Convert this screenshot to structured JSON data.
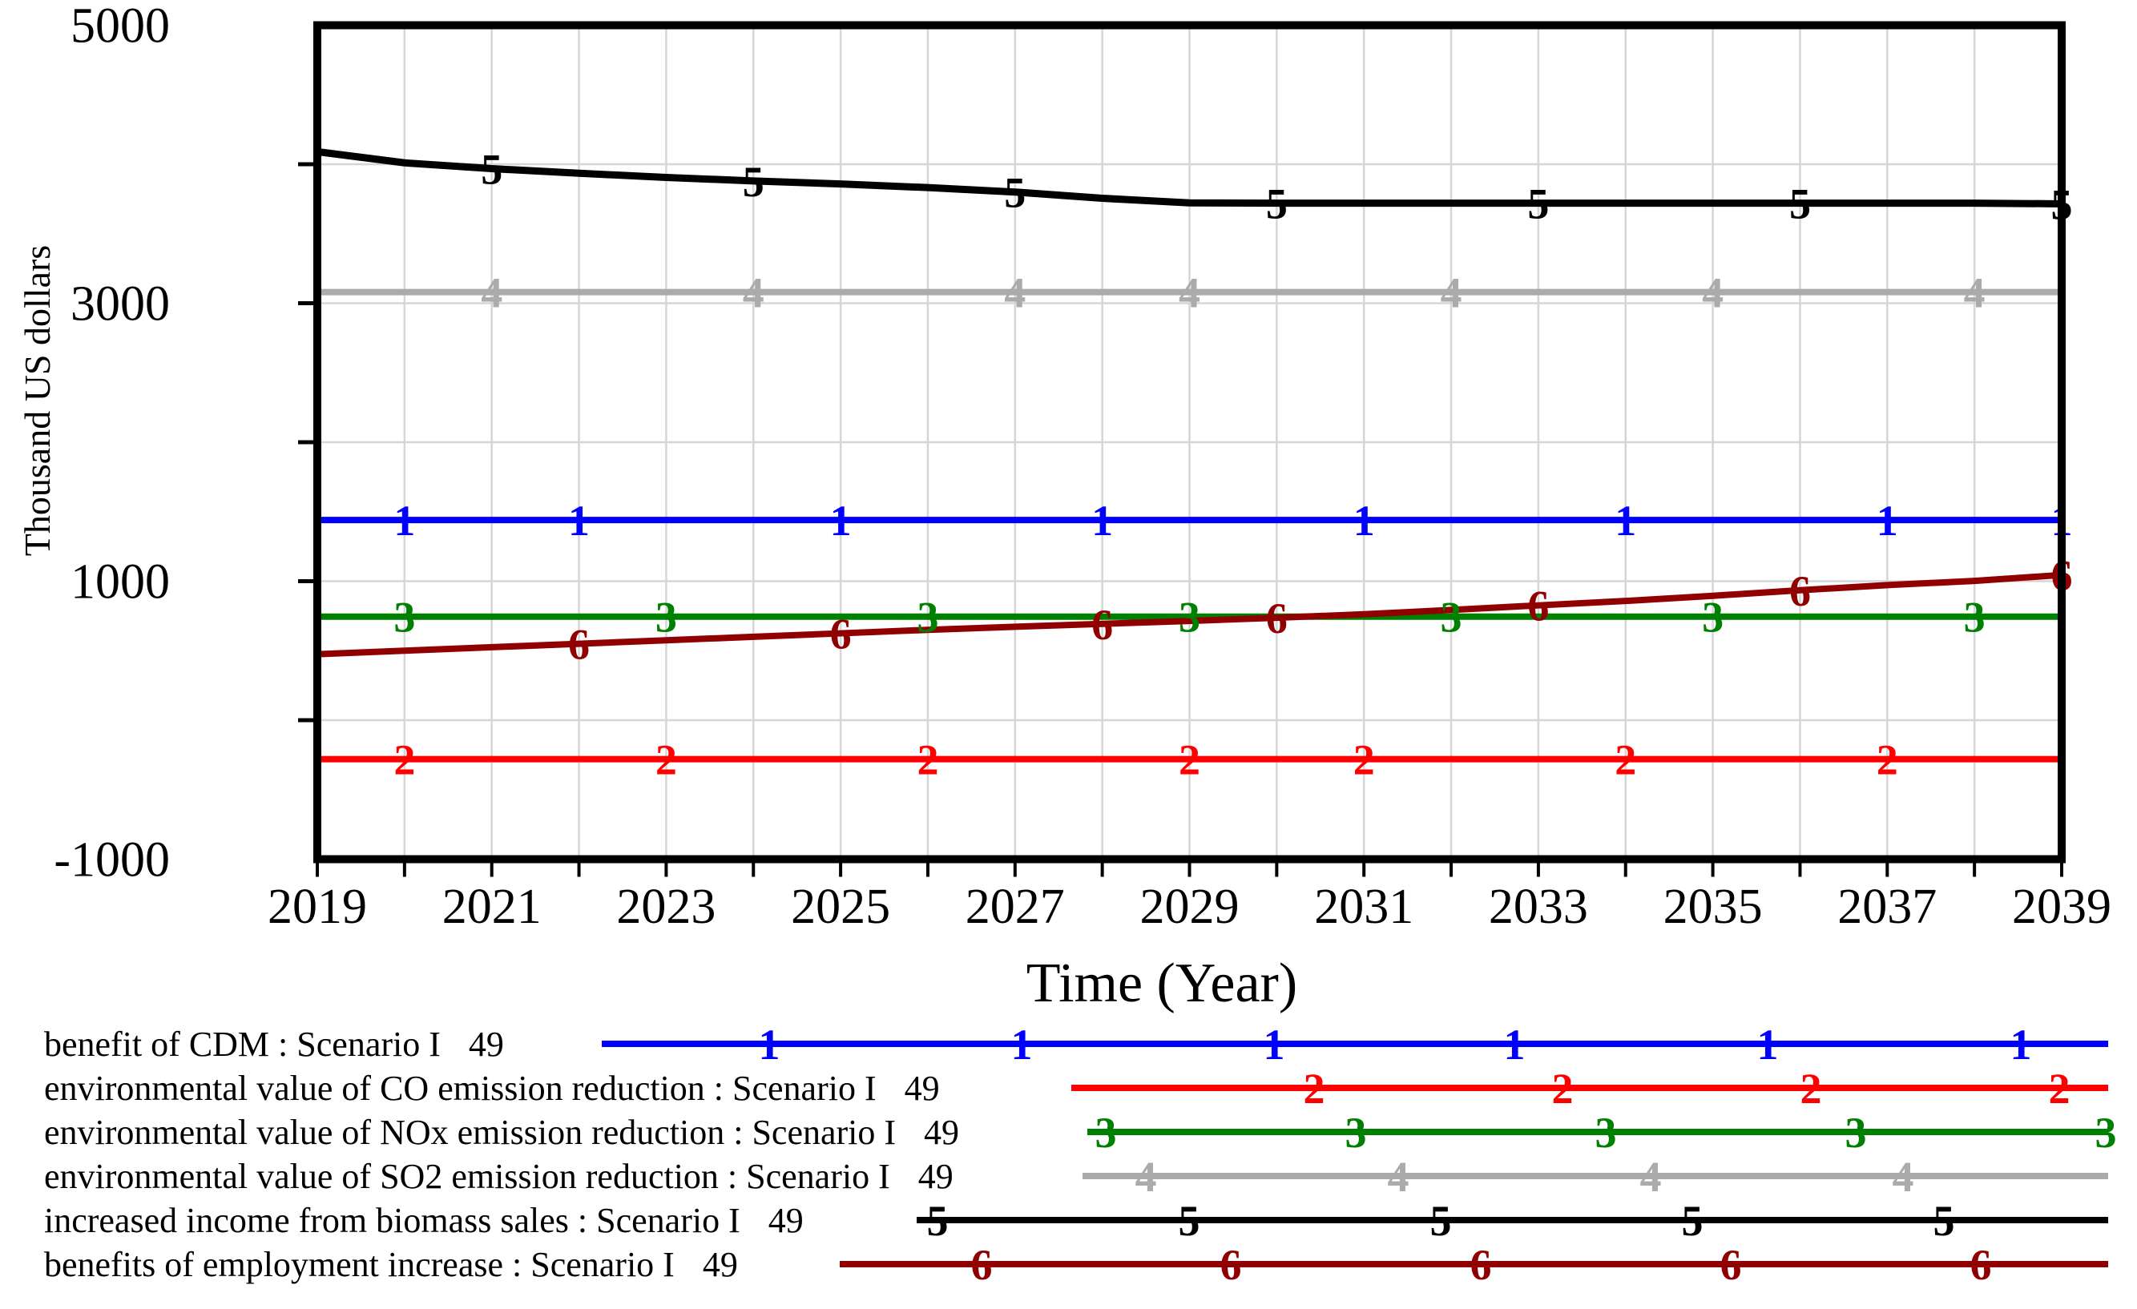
{
  "y_axis": {
    "label": "Thousand US dollars",
    "ticks": [
      5000,
      3000,
      1000,
      -1000
    ],
    "min": -1000,
    "max": 5000,
    "gridline_step": 1000
  },
  "x_axis": {
    "label": "Time (Year)",
    "ticks": [
      2019,
      2021,
      2023,
      2025,
      2027,
      2029,
      2031,
      2033,
      2035,
      2037,
      2039
    ],
    "min": 2019,
    "max": 2039,
    "gridline_step": 1
  },
  "colors": {
    "axis": "#000000",
    "gridline": "#d6d6d6"
  },
  "chart_data": {
    "type": "line",
    "title": "",
    "xlabel": "Time (Year)",
    "ylabel": "Thousand US dollars",
    "ylim": [
      -1000,
      5000
    ],
    "xlim": [
      2019,
      2039
    ],
    "grid": true,
    "legend_position": "bottom",
    "x": [
      2019,
      2020,
      2021,
      2022,
      2023,
      2024,
      2025,
      2026,
      2027,
      2028,
      2029,
      2030,
      2031,
      2032,
      2033,
      2034,
      2035,
      2036,
      2037,
      2038,
      2039
    ],
    "series": [
      {
        "num": "1",
        "label": "benefit of CDM : Scenario I",
        "run": "49",
        "color": "#0000ff",
        "values": [
          1440,
          1440,
          1440,
          1440,
          1440,
          1440,
          1440,
          1440,
          1440,
          1440,
          1440,
          1440,
          1440,
          1440,
          1440,
          1440,
          1440,
          1440,
          1440,
          1440,
          1440
        ],
        "marker_years": [
          2020,
          2022,
          2025,
          2028,
          2031,
          2034,
          2037,
          2039
        ],
        "legend": {
          "line_start": 751,
          "line_end": 2631,
          "markers": [
            960,
            1275,
            1590,
            1890,
            2206,
            2522
          ]
        }
      },
      {
        "num": "2",
        "label": "environmental value of CO emission reduction : Scenario I",
        "run": "49",
        "color": "#ff0000",
        "values": [
          -280,
          -280,
          -280,
          -280,
          -280,
          -280,
          -280,
          -280,
          -280,
          -280,
          -280,
          -280,
          -280,
          -280,
          -280,
          -280,
          -280,
          -280,
          -280,
          -280,
          -280
        ],
        "marker_years": [
          2020,
          2023,
          2026,
          2029,
          2031,
          2034,
          2037
        ],
        "legend": {
          "line_start": 1337,
          "line_end": 2631,
          "markers": [
            1640,
            1950,
            2260,
            2570
          ]
        }
      },
      {
        "num": "3",
        "label": "environmental value of NOx emission reduction : Scenario I",
        "run": "49",
        "color": "#008000",
        "values": [
          745,
          745,
          745,
          745,
          745,
          745,
          745,
          745,
          745,
          745,
          745,
          745,
          745,
          745,
          745,
          745,
          745,
          745,
          745,
          745,
          745
        ],
        "marker_years": [
          2020,
          2023,
          2026,
          2029,
          2032,
          2035,
          2038
        ],
        "legend": {
          "line_start": 1357,
          "line_end": 2631,
          "markers": [
            1380,
            1692,
            2004,
            2316,
            2628
          ]
        }
      },
      {
        "num": "4",
        "label": "environmental value of SO2 emission reduction : Scenario I",
        "run": "49",
        "color": "#ababab",
        "values": [
          3080,
          3080,
          3080,
          3080,
          3080,
          3080,
          3080,
          3080,
          3080,
          3080,
          3080,
          3080,
          3080,
          3080,
          3080,
          3080,
          3080,
          3080,
          3080,
          3080,
          3080
        ],
        "marker_years": [
          2021,
          2024,
          2027,
          2029,
          2032,
          2035,
          2038
        ],
        "legend": {
          "line_start": 1351,
          "line_end": 2631,
          "markers": [
            1430,
            1745,
            2060,
            2375
          ]
        }
      },
      {
        "num": "5",
        "label": "increased income from biomass sales : Scenario I",
        "run": "49",
        "color": "#000000",
        "values": [
          4090,
          4010,
          3968,
          3935,
          3905,
          3880,
          3858,
          3832,
          3800,
          3755,
          3722,
          3720,
          3720,
          3720,
          3720,
          3720,
          3720,
          3720,
          3720,
          3720,
          3715
        ],
        "marker_years": [
          2021,
          2024,
          2027,
          2030,
          2033,
          2036,
          2039
        ],
        "legend": {
          "line_start": 1144,
          "line_end": 2631,
          "markers": [
            1170,
            1484,
            1798,
            2112,
            2426
          ]
        }
      },
      {
        "num": "6",
        "label": "benefits of employment increase : Scenario I",
        "run": "49",
        "color": "#900000",
        "values": [
          475,
          500,
          525,
          550,
          575,
          600,
          625,
          650,
          672,
          693,
          714,
          737,
          762,
          793,
          826,
          858,
          895,
          935,
          972,
          1002,
          1045
        ],
        "marker_years": [
          2022,
          2025,
          2028,
          2030,
          2033,
          2036,
          2039
        ],
        "legend": {
          "line_start": 1048,
          "line_end": 2631,
          "markers": [
            1225,
            1536,
            1848,
            2160,
            2472
          ]
        }
      }
    ]
  }
}
